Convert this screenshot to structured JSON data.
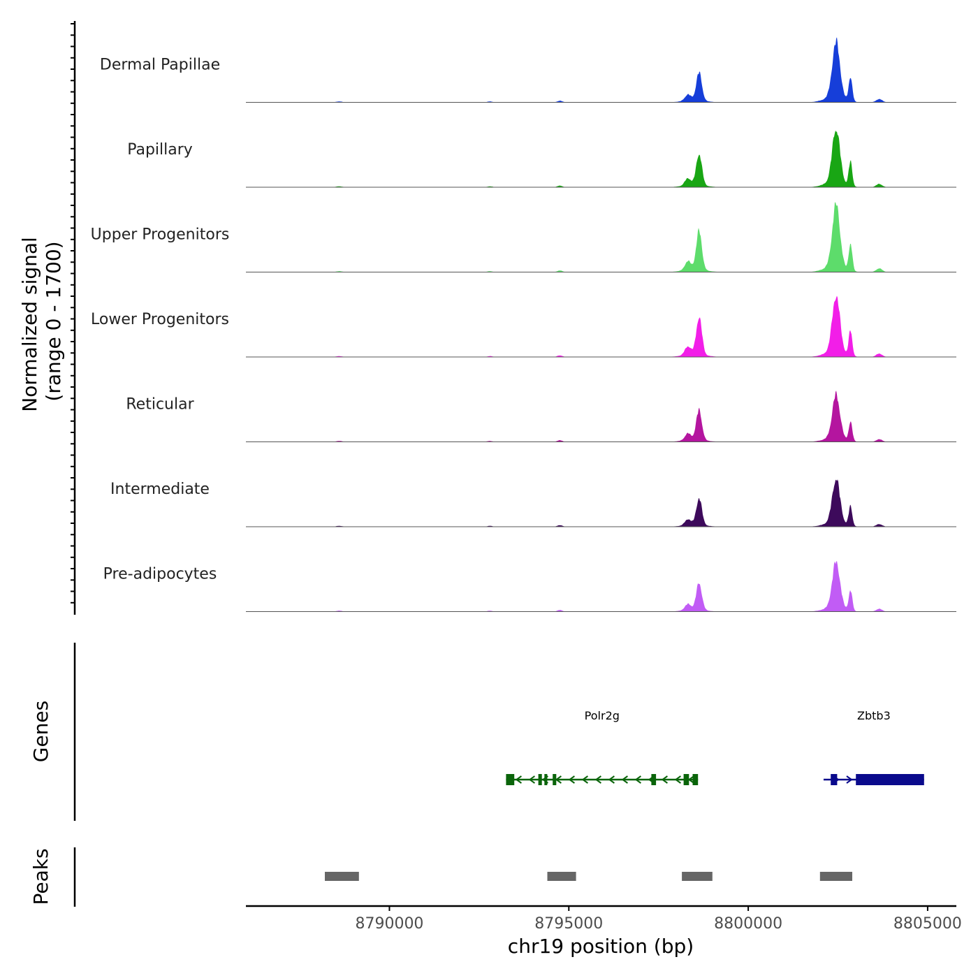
{
  "chart_data": {
    "type": "area",
    "chromosome": "chr19",
    "xlabel": "chr19 position (bp)",
    "xlim": [
      8786000,
      8805800
    ],
    "x_ticks": [
      8790000,
      8795000,
      8800000,
      8805000
    ],
    "x_tick_labels": [
      "8790000",
      "8795000",
      "8800000",
      "8805000"
    ],
    "coverage_ylabel": [
      "Normalized signal",
      "(range 0 - 1700)"
    ],
    "ylim": [
      0,
      1700
    ],
    "peak_shapes": [
      {
        "name": "small-a",
        "center": 8788600,
        "width": 120,
        "height": 25
      },
      {
        "name": "small-b",
        "center": 8792800,
        "width": 100,
        "height": 25
      },
      {
        "name": "small-c",
        "center": 8794750,
        "width": 100,
        "height": 45
      },
      {
        "name": "polr2g-shoulder",
        "center": 8798320,
        "width": 120,
        "height": 0.22
      },
      {
        "name": "polr2g-main",
        "center": 8798630,
        "width": 110,
        "height": 1.0
      },
      {
        "name": "polr2g-base",
        "center": 8798500,
        "width": 420,
        "height": 0.08
      },
      {
        "name": "zbtb3-main",
        "center": 8802450,
        "width": 150,
        "height": 1.0
      },
      {
        "name": "zbtb3-base",
        "center": 8802400,
        "width": 380,
        "height": 0.1
      },
      {
        "name": "zbtb3-second",
        "center": 8802850,
        "width": 70,
        "height": 0.45
      },
      {
        "name": "zbtb3-tail",
        "center": 8803650,
        "width": 120,
        "height": 0.06
      }
    ],
    "series": [
      {
        "name": "Dermal Papillae",
        "color": "#163ed9",
        "peak1": 780,
        "peak2": 1550
      },
      {
        "name": "Papillary",
        "color": "#19a614",
        "peak1": 890,
        "peak2": 1520
      },
      {
        "name": "Upper Progenitors",
        "color": "#5ddc6b",
        "peak1": 1080,
        "peak2": 1740
      },
      {
        "name": "Lower Progenitors",
        "color": "#f21ee8",
        "peak1": 1060,
        "peak2": 1580
      },
      {
        "name": "Reticular",
        "color": "#b4159f",
        "peak1": 840,
        "peak2": 1210
      },
      {
        "name": "Intermediate",
        "color": "#3d0a5b",
        "peak1": 750,
        "peak2": 1240
      },
      {
        "name": "Pre-adipocytes",
        "color": "#c15cf5",
        "peak1": 750,
        "peak2": 1280
      }
    ],
    "genes_track_label": "Genes",
    "genes": [
      {
        "name": "Polr2g",
        "strand": "-",
        "start": 8793250,
        "end": 8798600,
        "color": "#0a640a",
        "exons": [
          [
            8793250,
            8793480
          ],
          [
            8794150,
            8794250
          ],
          [
            8794320,
            8794400
          ],
          [
            8794550,
            8794650
          ],
          [
            8797300,
            8797430
          ],
          [
            8798200,
            8798350
          ],
          [
            8798450,
            8798600
          ]
        ]
      },
      {
        "name": "Zbtb3",
        "strand": "+",
        "start": 8802100,
        "end": 8804900,
        "color": "#0a0a8c",
        "exons": [
          [
            8802300,
            8802480
          ],
          [
            8803000,
            8804900
          ]
        ]
      }
    ],
    "peaks_track_label": "Peaks",
    "peaks": [
      [
        8788200,
        8789150
      ],
      [
        8794400,
        8795200
      ],
      [
        8798150,
        8799000
      ],
      [
        8802000,
        8802900
      ]
    ],
    "peaks_color": "#666666"
  }
}
